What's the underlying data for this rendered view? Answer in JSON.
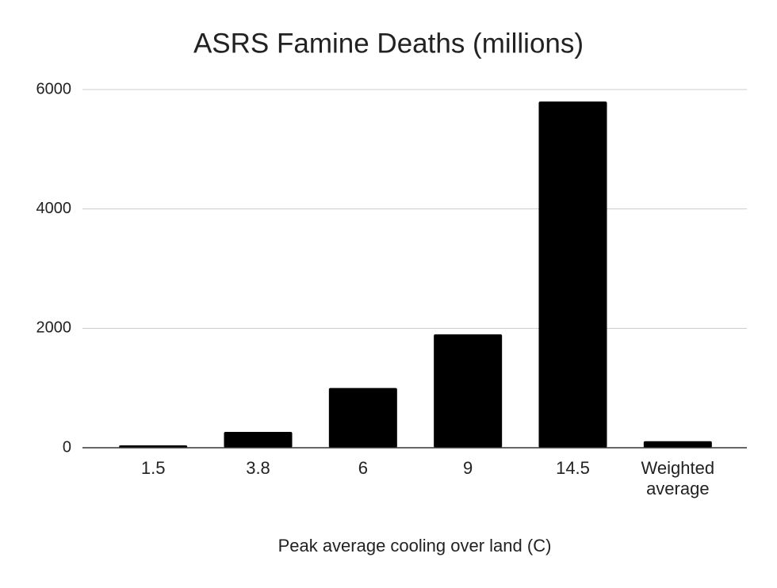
{
  "chart_data": {
    "type": "bar",
    "title": "ASRS Famine Deaths (millions)",
    "x_label": "Peak average cooling over land (C)",
    "categories": [
      "1.5",
      "3.8",
      "6",
      "9",
      "14.5",
      "Weighted average"
    ],
    "values": [
      40,
      265,
      1000,
      1900,
      5800,
      110
    ],
    "color": "#000000",
    "ylim": [
      0,
      6000
    ],
    "yticks": [
      0,
      2000,
      4000,
      6000
    ],
    "grid": true
  }
}
